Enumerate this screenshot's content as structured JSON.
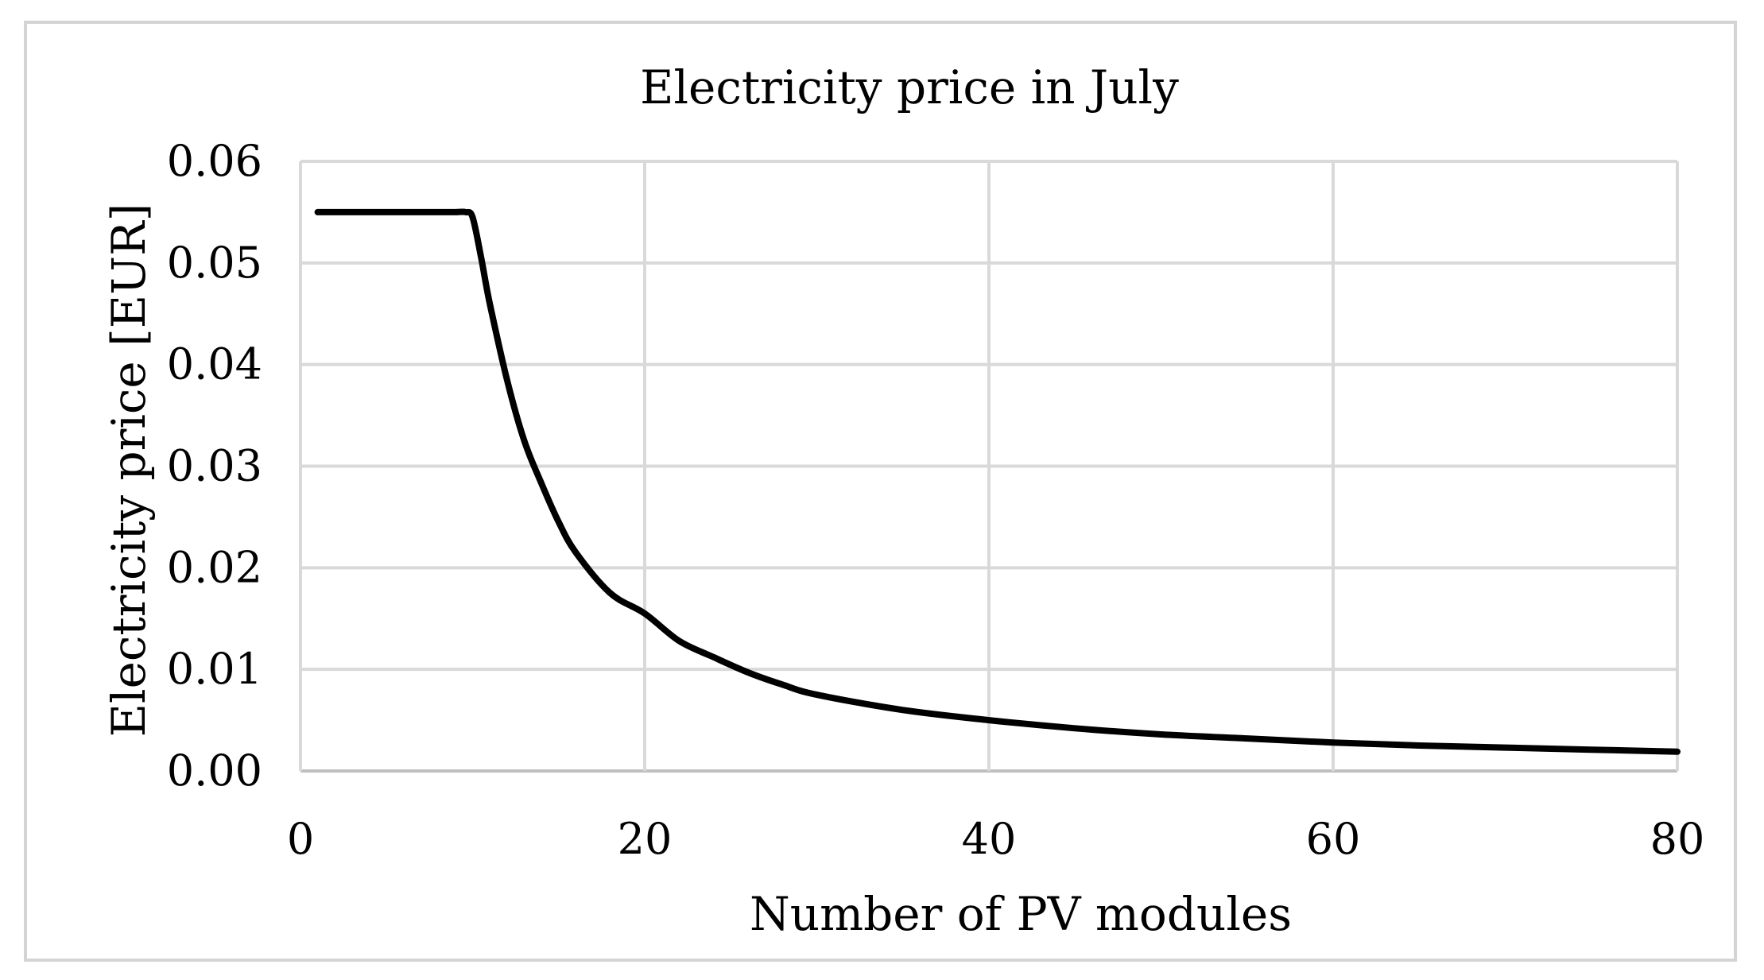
{
  "chart_data": {
    "type": "line",
    "title": "Electricity price in July",
    "xlabel": "Number of PV modules",
    "ylabel": "Electricity price [EUR]",
    "xlim": [
      0,
      80
    ],
    "ylim": [
      0,
      0.06
    ],
    "grid": true,
    "x_ticks": [
      "0",
      "20",
      "40",
      "60",
      "80"
    ],
    "y_ticks": [
      "0.00",
      "0.01",
      "0.02",
      "0.03",
      "0.04",
      "0.05",
      "0.06"
    ],
    "x_tick_values": [
      0,
      20,
      40,
      60,
      80
    ],
    "y_tick_values": [
      0,
      0.01,
      0.02,
      0.03,
      0.04,
      0.05,
      0.06
    ],
    "colors": {
      "line": "#000000",
      "grid": "#d9d9d9",
      "frame": "#d4d4d4"
    },
    "series": [
      {
        "name": "Electricity price",
        "x": [
          1,
          2,
          4,
          6,
          8,
          9,
          9.6,
          10,
          10.5,
          11,
          12,
          13,
          14,
          15,
          16,
          18,
          20,
          22,
          24,
          26,
          28,
          30,
          35,
          40,
          45,
          50,
          55,
          60,
          65,
          70,
          75,
          80
        ],
        "y": [
          0.055,
          0.055,
          0.055,
          0.055,
          0.055,
          0.055,
          0.055,
          0.0545,
          0.0505,
          0.046,
          0.0385,
          0.0325,
          0.0283,
          0.0245,
          0.0215,
          0.0175,
          0.0155,
          0.0128,
          0.0112,
          0.0097,
          0.0085,
          0.0075,
          0.006,
          0.005,
          0.0042,
          0.0036,
          0.0032,
          0.0028,
          0.0025,
          0.0023,
          0.0021,
          0.0019
        ]
      }
    ]
  }
}
